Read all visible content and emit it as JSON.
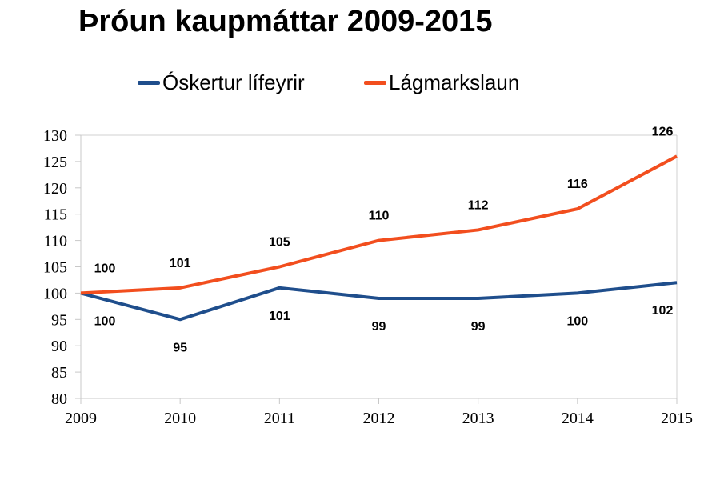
{
  "title": "Þróun kaupmáttar 2009-2015",
  "chart_data": {
    "type": "line",
    "title": "Þróun kaupmáttar 2009-2015",
    "x": [
      "2009",
      "2010",
      "2011",
      "2012",
      "2013",
      "2014",
      "2015"
    ],
    "series": [
      {
        "name": "Óskertur lífeyrir",
        "color": "#1f4e8c",
        "values": [
          100,
          95,
          101,
          99,
          99,
          100,
          102
        ],
        "label_position": "below"
      },
      {
        "name": "Lágmarkslaun",
        "color": "#f24e1e",
        "values": [
          100,
          101,
          105,
          110,
          112,
          116,
          126
        ],
        "label_position": "above"
      }
    ],
    "xlabel": "",
    "ylabel": "",
    "ylim": [
      80,
      130
    ],
    "yticks": [
      "80",
      "85",
      "90",
      "95",
      "100",
      "105",
      "110",
      "115",
      "120",
      "125",
      "130"
    ],
    "grid": "top-border-only",
    "legend": "top-center"
  }
}
